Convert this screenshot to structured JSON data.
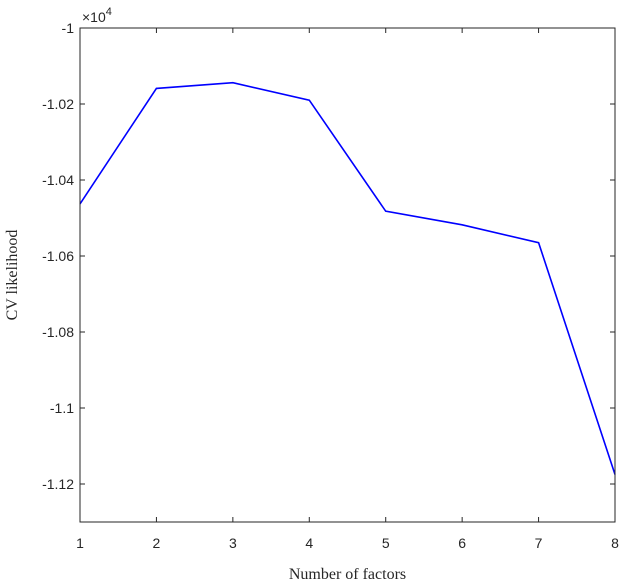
{
  "chart_data": {
    "type": "line",
    "title": "",
    "xlabel": "Number of factors",
    "ylabel": "CV likelihood",
    "x": [
      1,
      2,
      3,
      4,
      5,
      6,
      7,
      8
    ],
    "series": [
      {
        "values": [
          -10463,
          -10159,
          -10144,
          -10190,
          -10482,
          -10518,
          -10565,
          -11175
        ],
        "color": "#0000ff"
      }
    ],
    "xlim": [
      1,
      8
    ],
    "ylim": [
      -11300,
      -10000
    ],
    "xticks": [
      1,
      2,
      3,
      4,
      5,
      6,
      7,
      8
    ],
    "xtick_labels": [
      "1",
      "2",
      "3",
      "4",
      "5",
      "6",
      "7",
      "8"
    ],
    "yticks": [
      -11200,
      -11000,
      -10800,
      -10600,
      -10400,
      -10200,
      -10000
    ],
    "ytick_labels": [
      "-1.12",
      "-1.1",
      "-1.08",
      "-1.06",
      "-1.04",
      "-1.02",
      "-1"
    ],
    "exponent_prefix": "×10",
    "exponent_power": "4",
    "grid": false,
    "legend": false
  }
}
